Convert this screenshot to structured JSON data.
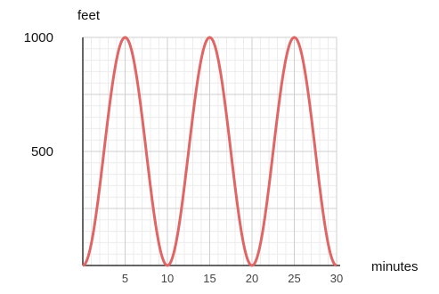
{
  "chart_data": {
    "type": "line",
    "title": "",
    "xlabel": "minutes",
    "ylabel": "feet",
    "xlim": [
      0,
      30
    ],
    "ylim": [
      0,
      1000
    ],
    "x_ticks": [
      "5",
      "10",
      "15",
      "20",
      "25",
      "30"
    ],
    "y_ticks": [
      "500",
      "1000"
    ],
    "grid": true,
    "colors": {
      "curve": "#e06666",
      "axis": "#333333",
      "grid_major": "#cfcfcf",
      "grid_minor": "#ececec"
    },
    "series": [
      {
        "x": [
          0,
          1,
          2,
          3,
          4,
          5,
          6,
          7,
          8,
          9,
          10,
          11,
          12,
          13,
          14,
          15,
          16,
          17,
          18,
          19,
          20,
          21,
          22,
          23,
          24,
          25,
          26,
          27,
          28,
          29,
          30
        ],
        "values": [
          0,
          95,
          345,
          655,
          905,
          1000,
          905,
          655,
          345,
          95,
          0,
          95,
          345,
          655,
          905,
          1000,
          905,
          655,
          345,
          95,
          0,
          95,
          345,
          655,
          905,
          1000,
          905,
          655,
          345,
          95,
          0
        ]
      }
    ]
  }
}
